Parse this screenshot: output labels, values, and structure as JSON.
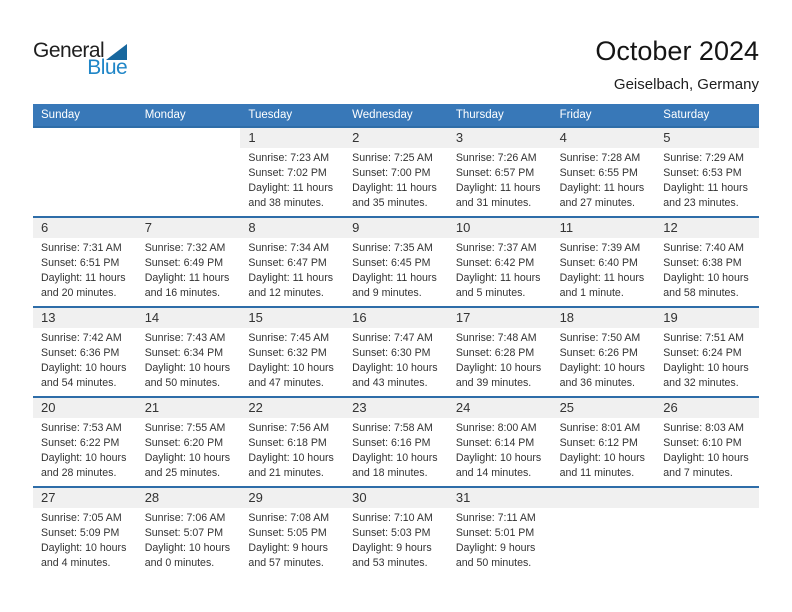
{
  "logo": {
    "general": "General",
    "blue": "Blue"
  },
  "header": {
    "title": "October 2024",
    "subtitle": "Geiselbach, Germany"
  },
  "colors": {
    "header_bg": "#3878B8",
    "row_border": "#2E6DA8",
    "strip_bg": "#F0F0F0",
    "logo_text_blue": "#2086C7",
    "logo_triangle": "#17679E"
  },
  "calendar": {
    "day_headers": [
      "Sunday",
      "Monday",
      "Tuesday",
      "Wednesday",
      "Thursday",
      "Friday",
      "Saturday"
    ],
    "weeks": [
      {
        "cells": [
          {
            "blank": true
          },
          {
            "blank": true
          },
          {
            "day": "1",
            "sunrise": "Sunrise: 7:23 AM",
            "sunset": "Sunset: 7:02 PM",
            "daylight": [
              "Daylight: 11 hours",
              "and 38 minutes."
            ]
          },
          {
            "day": "2",
            "sunrise": "Sunrise: 7:25 AM",
            "sunset": "Sunset: 7:00 PM",
            "daylight": [
              "Daylight: 11 hours",
              "and 35 minutes."
            ]
          },
          {
            "day": "3",
            "sunrise": "Sunrise: 7:26 AM",
            "sunset": "Sunset: 6:57 PM",
            "daylight": [
              "Daylight: 11 hours",
              "and 31 minutes."
            ]
          },
          {
            "day": "4",
            "sunrise": "Sunrise: 7:28 AM",
            "sunset": "Sunset: 6:55 PM",
            "daylight": [
              "Daylight: 11 hours",
              "and 27 minutes."
            ]
          },
          {
            "day": "5",
            "sunrise": "Sunrise: 7:29 AM",
            "sunset": "Sunset: 6:53 PM",
            "daylight": [
              "Daylight: 11 hours",
              "and 23 minutes."
            ]
          }
        ]
      },
      {
        "cells": [
          {
            "day": "6",
            "sunrise": "Sunrise: 7:31 AM",
            "sunset": "Sunset: 6:51 PM",
            "daylight": [
              "Daylight: 11 hours",
              "and 20 minutes."
            ]
          },
          {
            "day": "7",
            "sunrise": "Sunrise: 7:32 AM",
            "sunset": "Sunset: 6:49 PM",
            "daylight": [
              "Daylight: 11 hours",
              "and 16 minutes."
            ]
          },
          {
            "day": "8",
            "sunrise": "Sunrise: 7:34 AM",
            "sunset": "Sunset: 6:47 PM",
            "daylight": [
              "Daylight: 11 hours",
              "and 12 minutes."
            ]
          },
          {
            "day": "9",
            "sunrise": "Sunrise: 7:35 AM",
            "sunset": "Sunset: 6:45 PM",
            "daylight": [
              "Daylight: 11 hours",
              "and 9 minutes."
            ]
          },
          {
            "day": "10",
            "sunrise": "Sunrise: 7:37 AM",
            "sunset": "Sunset: 6:42 PM",
            "daylight": [
              "Daylight: 11 hours",
              "and 5 minutes."
            ]
          },
          {
            "day": "11",
            "sunrise": "Sunrise: 7:39 AM",
            "sunset": "Sunset: 6:40 PM",
            "daylight": [
              "Daylight: 11 hours",
              "and 1 minute."
            ]
          },
          {
            "day": "12",
            "sunrise": "Sunrise: 7:40 AM",
            "sunset": "Sunset: 6:38 PM",
            "daylight": [
              "Daylight: 10 hours",
              "and 58 minutes."
            ]
          }
        ]
      },
      {
        "cells": [
          {
            "day": "13",
            "sunrise": "Sunrise: 7:42 AM",
            "sunset": "Sunset: 6:36 PM",
            "daylight": [
              "Daylight: 10 hours",
              "and 54 minutes."
            ]
          },
          {
            "day": "14",
            "sunrise": "Sunrise: 7:43 AM",
            "sunset": "Sunset: 6:34 PM",
            "daylight": [
              "Daylight: 10 hours",
              "and 50 minutes."
            ]
          },
          {
            "day": "15",
            "sunrise": "Sunrise: 7:45 AM",
            "sunset": "Sunset: 6:32 PM",
            "daylight": [
              "Daylight: 10 hours",
              "and 47 minutes."
            ]
          },
          {
            "day": "16",
            "sunrise": "Sunrise: 7:47 AM",
            "sunset": "Sunset: 6:30 PM",
            "daylight": [
              "Daylight: 10 hours",
              "and 43 minutes."
            ]
          },
          {
            "day": "17",
            "sunrise": "Sunrise: 7:48 AM",
            "sunset": "Sunset: 6:28 PM",
            "daylight": [
              "Daylight: 10 hours",
              "and 39 minutes."
            ]
          },
          {
            "day": "18",
            "sunrise": "Sunrise: 7:50 AM",
            "sunset": "Sunset: 6:26 PM",
            "daylight": [
              "Daylight: 10 hours",
              "and 36 minutes."
            ]
          },
          {
            "day": "19",
            "sunrise": "Sunrise: 7:51 AM",
            "sunset": "Sunset: 6:24 PM",
            "daylight": [
              "Daylight: 10 hours",
              "and 32 minutes."
            ]
          }
        ]
      },
      {
        "cells": [
          {
            "day": "20",
            "sunrise": "Sunrise: 7:53 AM",
            "sunset": "Sunset: 6:22 PM",
            "daylight": [
              "Daylight: 10 hours",
              "and 28 minutes."
            ]
          },
          {
            "day": "21",
            "sunrise": "Sunrise: 7:55 AM",
            "sunset": "Sunset: 6:20 PM",
            "daylight": [
              "Daylight: 10 hours",
              "and 25 minutes."
            ]
          },
          {
            "day": "22",
            "sunrise": "Sunrise: 7:56 AM",
            "sunset": "Sunset: 6:18 PM",
            "daylight": [
              "Daylight: 10 hours",
              "and 21 minutes."
            ]
          },
          {
            "day": "23",
            "sunrise": "Sunrise: 7:58 AM",
            "sunset": "Sunset: 6:16 PM",
            "daylight": [
              "Daylight: 10 hours",
              "and 18 minutes."
            ]
          },
          {
            "day": "24",
            "sunrise": "Sunrise: 8:00 AM",
            "sunset": "Sunset: 6:14 PM",
            "daylight": [
              "Daylight: 10 hours",
              "and 14 minutes."
            ]
          },
          {
            "day": "25",
            "sunrise": "Sunrise: 8:01 AM",
            "sunset": "Sunset: 6:12 PM",
            "daylight": [
              "Daylight: 10 hours",
              "and 11 minutes."
            ]
          },
          {
            "day": "26",
            "sunrise": "Sunrise: 8:03 AM",
            "sunset": "Sunset: 6:10 PM",
            "daylight": [
              "Daylight: 10 hours",
              "and 7 minutes."
            ]
          }
        ]
      },
      {
        "cells": [
          {
            "day": "27",
            "sunrise": "Sunrise: 7:05 AM",
            "sunset": "Sunset: 5:09 PM",
            "daylight": [
              "Daylight: 10 hours",
              "and 4 minutes."
            ]
          },
          {
            "day": "28",
            "sunrise": "Sunrise: 7:06 AM",
            "sunset": "Sunset: 5:07 PM",
            "daylight": [
              "Daylight: 10 hours",
              "and 0 minutes."
            ]
          },
          {
            "day": "29",
            "sunrise": "Sunrise: 7:08 AM",
            "sunset": "Sunset: 5:05 PM",
            "daylight": [
              "Daylight: 9 hours",
              "and 57 minutes."
            ]
          },
          {
            "day": "30",
            "sunrise": "Sunrise: 7:10 AM",
            "sunset": "Sunset: 5:03 PM",
            "daylight": [
              "Daylight: 9 hours",
              "and 53 minutes."
            ]
          },
          {
            "day": "31",
            "sunrise": "Sunrise: 7:11 AM",
            "sunset": "Sunset: 5:01 PM",
            "daylight": [
              "Daylight: 9 hours",
              "and 50 minutes."
            ]
          },
          {
            "empty": true
          },
          {
            "empty": true
          }
        ]
      }
    ]
  }
}
